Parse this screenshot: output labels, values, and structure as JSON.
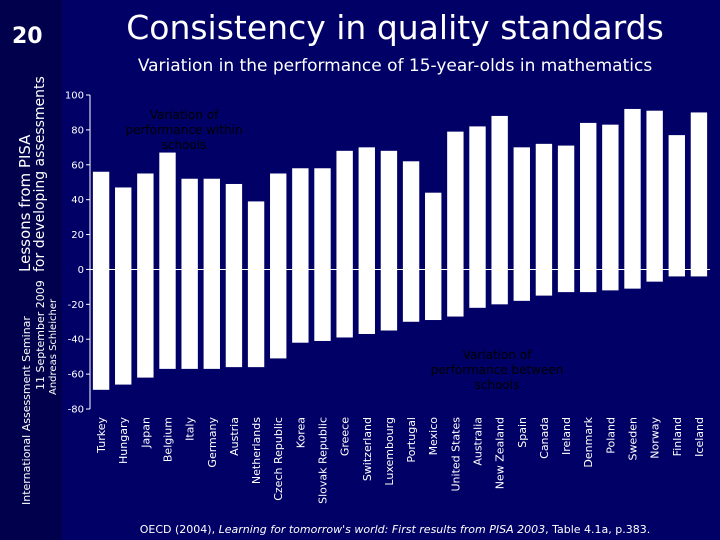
{
  "sidebar": {
    "slide_number": "20",
    "line1": "Lessons from PISA",
    "line2": "for developing assessments",
    "line3": "International Assessment Seminar",
    "line4": "11 September 2009",
    "line5": "Andreas Schleicher"
  },
  "header": {
    "title": "Consistency in quality standards",
    "subtitle": "Variation in the performance of 15-year-olds in mathematics"
  },
  "footer": {
    "source_prefix": "OECD (2004), ",
    "source_title": "Learning for tomorrow's world: First results from PISA 2003",
    "source_suffix": ", Table 4.1a, p.383."
  },
  "colors": {
    "background": "#000066",
    "within_bars": "#ffffff",
    "between_bars": "#ffffff",
    "text": "#ffffff"
  },
  "chart_data": {
    "type": "bar",
    "categories": [
      "Turkey",
      "Hungary",
      "Japan",
      "Belgium",
      "Italy",
      "Germany",
      "Austria",
      "Netherlands",
      "Czech Republic",
      "Korea",
      "Slovak Republic",
      "Greece",
      "Switzerland",
      "Luxembourg",
      "Portugal",
      "Mexico",
      "United States",
      "Australia",
      "New Zealand",
      "Spain",
      "Canada",
      "Ireland",
      "Denmark",
      "Poland",
      "Sweden",
      "Norway",
      "Finland",
      "Iceland"
    ],
    "series": [
      {
        "name": "Variation of performance within schools",
        "values": [
          56,
          47,
          55,
          67,
          52,
          52,
          49,
          39,
          55,
          58,
          58,
          68,
          70,
          68,
          62,
          44,
          79,
          82,
          88,
          70,
          72,
          71,
          84,
          83,
          92,
          91,
          77,
          90
        ]
      },
      {
        "name": "Variation of performance between schools",
        "values": [
          -69,
          -66,
          -62,
          -57,
          -57,
          -57,
          -56,
          -56,
          -51,
          -42,
          -41,
          -39,
          -37,
          -35,
          -30,
          -29,
          -27,
          -22,
          -20,
          -18,
          -15,
          -13,
          -13,
          -12,
          -11,
          -7,
          -4,
          -4
        ]
      }
    ],
    "ylim": [
      -80,
      100
    ],
    "yticks": [
      -80,
      -60,
      -40,
      -20,
      0,
      20,
      40,
      60,
      80,
      100
    ],
    "grid": false,
    "annotations": {
      "within": "Variation of performance within schools",
      "between": "Variation of performance between schools"
    }
  }
}
